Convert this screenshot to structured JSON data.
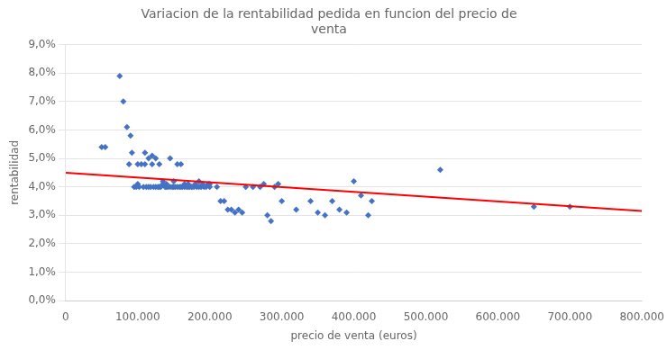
{
  "chart_data": {
    "type": "scatter",
    "title": "Variacion de la rentabilidad pedida en funcion del precio de\nventa",
    "x_label": "precio de venta (euros)",
    "y_label": "rentabilidad",
    "xlim": [
      0,
      800000
    ],
    "ylim": [
      0.0,
      0.09
    ],
    "xticks": [
      0,
      {
        "value": 100000,
        "label": "100.000"
      },
      {
        "value": 200000,
        "label": "200.000"
      },
      {
        "value": 300000,
        "label": "300.000"
      },
      {
        "value": 400000,
        "label": "400.000"
      },
      {
        "value": 500000,
        "label": "500.000"
      },
      {
        "value": 600000,
        "label": "600.000"
      },
      {
        "value": 700000,
        "label": "700.000"
      },
      {
        "value": 800000,
        "label": "800.000"
      }
    ],
    "yticks": [
      {
        "value": 0.0,
        "label": "0,0%"
      },
      {
        "value": 0.01,
        "label": "1,0%"
      },
      {
        "value": 0.02,
        "label": "2,0%"
      },
      {
        "value": 0.03,
        "label": "3,0%"
      },
      {
        "value": 0.04,
        "label": "4,0%"
      },
      {
        "value": 0.05,
        "label": "5,0%"
      },
      {
        "value": 0.06,
        "label": "6,0%"
      },
      {
        "value": 0.07,
        "label": "7,0%"
      },
      {
        "value": 0.08,
        "label": "8,0%"
      },
      {
        "value": 0.09,
        "label": "9,0%"
      }
    ],
    "grid": "y",
    "series": [
      {
        "type": "scatter",
        "color": "#4472C4",
        "marker": "diamond",
        "x": [
          50000,
          55000,
          75000,
          80000,
          85000,
          88000,
          90000,
          92000,
          95000,
          98000,
          100000,
          100000,
          102000,
          105000,
          108000,
          110000,
          110000,
          112000,
          115000,
          115000,
          118000,
          120000,
          120000,
          122000,
          125000,
          125000,
          128000,
          130000,
          130000,
          132000,
          135000,
          135000,
          138000,
          140000,
          140000,
          142000,
          145000,
          145000,
          148000,
          150000,
          150000,
          152000,
          155000,
          155000,
          158000,
          160000,
          160000,
          162000,
          165000,
          165000,
          168000,
          170000,
          170000,
          172000,
          175000,
          175000,
          178000,
          180000,
          182000,
          185000,
          185000,
          188000,
          190000,
          192000,
          195000,
          198000,
          200000,
          200000,
          210000,
          215000,
          220000,
          225000,
          230000,
          235000,
          240000,
          245000,
          250000,
          260000,
          270000,
          275000,
          280000,
          285000,
          290000,
          295000,
          300000,
          320000,
          340000,
          350000,
          360000,
          370000,
          380000,
          390000,
          400000,
          410000,
          420000,
          425000,
          520000,
          650000,
          700000
        ],
        "values": [
          0.054,
          0.054,
          0.079,
          0.07,
          0.061,
          0.048,
          0.058,
          0.052,
          0.04,
          0.04,
          0.048,
          0.041,
          0.04,
          0.048,
          0.04,
          0.052,
          0.048,
          0.04,
          0.05,
          0.04,
          0.04,
          0.051,
          0.048,
          0.04,
          0.05,
          0.04,
          0.04,
          0.048,
          0.04,
          0.04,
          0.042,
          0.041,
          0.04,
          0.041,
          0.04,
          0.04,
          0.05,
          0.04,
          0.04,
          0.042,
          0.04,
          0.04,
          0.048,
          0.04,
          0.04,
          0.048,
          0.04,
          0.04,
          0.041,
          0.04,
          0.04,
          0.041,
          0.04,
          0.04,
          0.04,
          0.04,
          0.04,
          0.041,
          0.04,
          0.042,
          0.04,
          0.04,
          0.041,
          0.04,
          0.04,
          0.041,
          0.041,
          0.04,
          0.04,
          0.035,
          0.035,
          0.032,
          0.032,
          0.031,
          0.032,
          0.031,
          0.04,
          0.04,
          0.04,
          0.041,
          0.03,
          0.028,
          0.04,
          0.041,
          0.035,
          0.032,
          0.035,
          0.031,
          0.03,
          0.035,
          0.032,
          0.031,
          0.042,
          0.037,
          0.03,
          0.035,
          0.046,
          0.033,
          0.033
        ]
      },
      {
        "type": "line",
        "color": "#FF0000",
        "line_style": "solid",
        "x": [
          0,
          800000
        ],
        "values": [
          0.045,
          0.0315
        ]
      }
    ]
  }
}
